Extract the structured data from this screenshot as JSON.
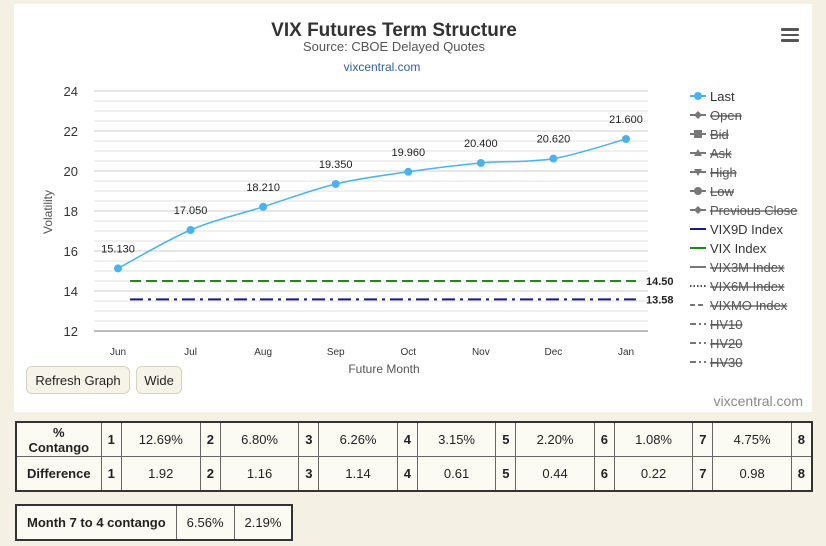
{
  "chart_data": {
    "type": "line",
    "title": "VIX Futures Term Structure",
    "subtitle": "Source: CBOE Delayed Quotes",
    "source_link": "vixcentral.com",
    "credit": "vixcentral.com",
    "xlabel": "Future Month",
    "ylabel": "Volatility",
    "categories": [
      "Jun",
      "Jul",
      "Aug",
      "Sep",
      "Oct",
      "Nov",
      "Dec",
      "Jan"
    ],
    "ylim": [
      12,
      24
    ],
    "yticks": [
      12,
      14,
      16,
      18,
      20,
      22,
      24
    ],
    "grid": true,
    "legend_position": "right",
    "series": [
      {
        "name": "Last",
        "values": [
          15.13,
          17.05,
          18.21,
          19.35,
          19.96,
          20.4,
          20.62,
          21.6
        ],
        "labels": [
          "15.130",
          "17.050",
          "18.210",
          "19.350",
          "19.960",
          "20.400",
          "20.620",
          "21.600"
        ],
        "color": "#4ab3ee"
      }
    ],
    "reference_lines": [
      {
        "name": "VIX Index",
        "value": 14.5,
        "label": "14.50",
        "color": "#1e8a1e"
      },
      {
        "name": "VIX9D Index",
        "value": 13.58,
        "label": "13.58",
        "color": "#1a1a8c"
      }
    ],
    "legend": [
      {
        "name": "Last",
        "active": true,
        "color": "#4ab3ee",
        "marker": "circle",
        "line": "solid"
      },
      {
        "name": "Open",
        "active": false,
        "color": "#777777",
        "marker": "diamond",
        "line": "solid"
      },
      {
        "name": "Bid",
        "active": false,
        "color": "#777777",
        "marker": "square",
        "line": "solid"
      },
      {
        "name": "Ask",
        "active": false,
        "color": "#777777",
        "marker": "triangle",
        "line": "solid"
      },
      {
        "name": "High",
        "active": false,
        "color": "#777777",
        "marker": "triangle-down",
        "line": "solid"
      },
      {
        "name": "Low",
        "active": false,
        "color": "#777777",
        "marker": "circle",
        "line": "solid"
      },
      {
        "name": "Previous Close",
        "active": false,
        "color": "#777777",
        "marker": "diamond",
        "line": "solid"
      },
      {
        "name": "VIX9D Index",
        "active": true,
        "color": "#1a1a8c",
        "marker": "none",
        "line": "solid"
      },
      {
        "name": "VIX Index",
        "active": true,
        "color": "#1e8a1e",
        "marker": "none",
        "line": "solid"
      },
      {
        "name": "VIX3M Index",
        "active": false,
        "color": "#777777",
        "marker": "none",
        "line": "solid"
      },
      {
        "name": "VIX6M Index",
        "active": false,
        "color": "#444444",
        "marker": "none",
        "line": "dotted"
      },
      {
        "name": "VIXMO Index",
        "active": false,
        "color": "#777777",
        "marker": "none",
        "line": "dashed"
      },
      {
        "name": "HV10",
        "active": false,
        "color": "#777777",
        "marker": "none",
        "line": "dashdot"
      },
      {
        "name": "HV20",
        "active": false,
        "color": "#777777",
        "marker": "none",
        "line": "dashdot"
      },
      {
        "name": "HV30",
        "active": false,
        "color": "#777777",
        "marker": "none",
        "line": "dashdot"
      }
    ]
  },
  "buttons": {
    "refresh": "Refresh Graph",
    "wide": "Wide"
  },
  "tables": {
    "contango": {
      "label": "% Contango",
      "cells": [
        {
          "n": "1",
          "v": "12.69%"
        },
        {
          "n": "2",
          "v": "6.80%"
        },
        {
          "n": "3",
          "v": "6.26%"
        },
        {
          "n": "4",
          "v": "3.15%"
        },
        {
          "n": "5",
          "v": "2.20%"
        },
        {
          "n": "6",
          "v": "1.08%"
        },
        {
          "n": "7",
          "v": "4.75%"
        },
        {
          "n": "8",
          "v": ""
        }
      ]
    },
    "difference": {
      "label": "Difference",
      "cells": [
        {
          "n": "1",
          "v": "1.92"
        },
        {
          "n": "2",
          "v": "1.16"
        },
        {
          "n": "3",
          "v": "1.14"
        },
        {
          "n": "4",
          "v": "0.61"
        },
        {
          "n": "5",
          "v": "0.44"
        },
        {
          "n": "6",
          "v": "0.22"
        },
        {
          "n": "7",
          "v": "0.98"
        },
        {
          "n": "8",
          "v": ""
        }
      ]
    },
    "month7to4": {
      "label": "Month 7 to 4 contango",
      "v1": "6.56%",
      "v2": "2.19%"
    }
  }
}
